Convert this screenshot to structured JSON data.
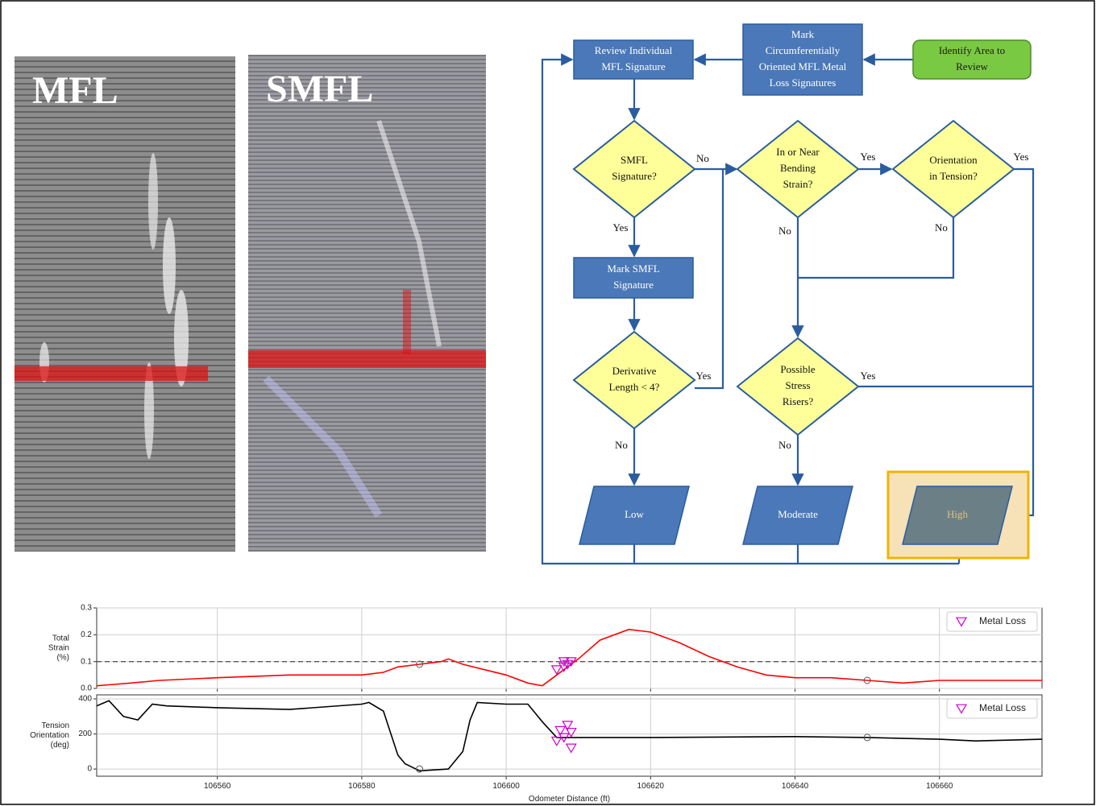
{
  "images": {
    "left_label": "MFL",
    "right_label": "SMFL"
  },
  "flowchart": {
    "nodes": [
      {
        "lines": [
          "Identify Area to",
          "Review"
        ]
      },
      {
        "lines": [
          "Mark",
          "Circumferentially",
          "Oriented MFL Metal",
          "Loss Signatures"
        ]
      },
      {
        "lines": [
          "Review Individual",
          "MFL Signature"
        ]
      },
      {
        "lines": [
          "SMFL",
          "Signature?"
        ]
      },
      {
        "lines": [
          "Mark SMFL",
          "Signature"
        ]
      },
      {
        "lines": [
          "Derivative",
          "Length < 4?"
        ]
      },
      {
        "lines": [
          "In or Near",
          "Bending",
          "Strain?"
        ]
      },
      {
        "lines": [
          "Orientation",
          "in Tension?"
        ]
      },
      {
        "lines": [
          "Possible",
          "Stress",
          "Risers?"
        ]
      },
      {
        "lines": [
          "Low"
        ]
      },
      {
        "lines": [
          "Moderate"
        ]
      },
      {
        "lines": [
          "High"
        ]
      }
    ],
    "edge_labels": [
      "No",
      "Yes",
      "Yes",
      "No",
      "Yes",
      "No",
      "Yes",
      "No",
      "Yes",
      "No"
    ]
  },
  "chart_data": [
    {
      "type": "line",
      "ylabel": [
        "Total",
        "Strain",
        "(%)"
      ],
      "xlim": [
        106543.3,
        106674.2
      ],
      "xticks": [
        106560,
        106580,
        106600,
        106620,
        106640,
        106660
      ],
      "show_xtick_labels": false,
      "ylim": [
        0,
        0.3
      ],
      "yticks": [
        {
          "value": 0,
          "label": "0.0"
        },
        0.1,
        0.2,
        0.3
      ],
      "grid": true,
      "hline": 0.1,
      "color": "#ff0000",
      "x": [
        106543.3,
        106548,
        106552,
        106560,
        106570,
        106580,
        106583,
        106585,
        106588,
        106591,
        106592,
        106594,
        106597,
        106600,
        106603,
        106605,
        106607,
        106610,
        106613,
        106617,
        106620,
        106624,
        106628,
        106632,
        106636,
        106640,
        106645,
        106650,
        106655,
        106660,
        106665,
        106670,
        106674.2
      ],
      "values": [
        0.01,
        0.02,
        0.03,
        0.04,
        0.05,
        0.05,
        0.06,
        0.08,
        0.09,
        0.1,
        0.11,
        0.09,
        0.07,
        0.05,
        0.02,
        0.01,
        0.05,
        0.11,
        0.18,
        0.22,
        0.21,
        0.17,
        0.12,
        0.08,
        0.05,
        0.04,
        0.04,
        0.03,
        0.02,
        0.03,
        0.03,
        0.03,
        0.03
      ],
      "markers": {
        "name": "Metal Loss",
        "color": "#cc00cc",
        "x": [
          106607,
          106608,
          106608.5,
          106609,
          106608
        ],
        "values": [
          0.07,
          0.08,
          0.09,
          0.1,
          0.1
        ]
      },
      "circle_markers": {
        "x": [
          106588,
          106650
        ],
        "values": [
          0.09,
          0.03
        ]
      },
      "legend": "upper right"
    },
    {
      "type": "line",
      "ylabel": [
        "Tension",
        "Orientation",
        "(deg)"
      ],
      "xlabel": "Odometer Distance (ft)",
      "xlim": [
        106543.3,
        106674.2
      ],
      "xticks": [
        106560,
        106580,
        106600,
        106620,
        106640,
        106660
      ],
      "show_xtick_labels": true,
      "ylim": [
        -41,
        423
      ],
      "yticks": [
        0,
        200,
        400
      ],
      "grid": true,
      "color": "#000000",
      "x": [
        106543.3,
        106545,
        106547,
        106549,
        106551,
        106553,
        106560,
        106570,
        106580,
        106581,
        106583,
        106585,
        106586,
        106588,
        106592,
        106594,
        106595,
        106596,
        106600,
        106603,
        106605,
        106607,
        106620,
        106640,
        106650,
        106660,
        106665,
        106674.2
      ],
      "values": [
        360,
        390,
        300,
        280,
        370,
        360,
        350,
        340,
        370,
        380,
        330,
        80,
        30,
        -10,
        0,
        100,
        280,
        380,
        370,
        370,
        270,
        180,
        180,
        185,
        180,
        170,
        160,
        170
      ],
      "markers": {
        "name": "Metal Loss",
        "color": "#cc00cc",
        "x": [
          106607,
          106608,
          106608.5,
          106609,
          106609,
          106607.5
        ],
        "values": [
          160,
          180,
          250,
          210,
          120,
          220
        ]
      },
      "circle_markers": {
        "x": [
          106588,
          106650
        ],
        "values": [
          0,
          180
        ]
      },
      "legend": "upper right"
    }
  ]
}
